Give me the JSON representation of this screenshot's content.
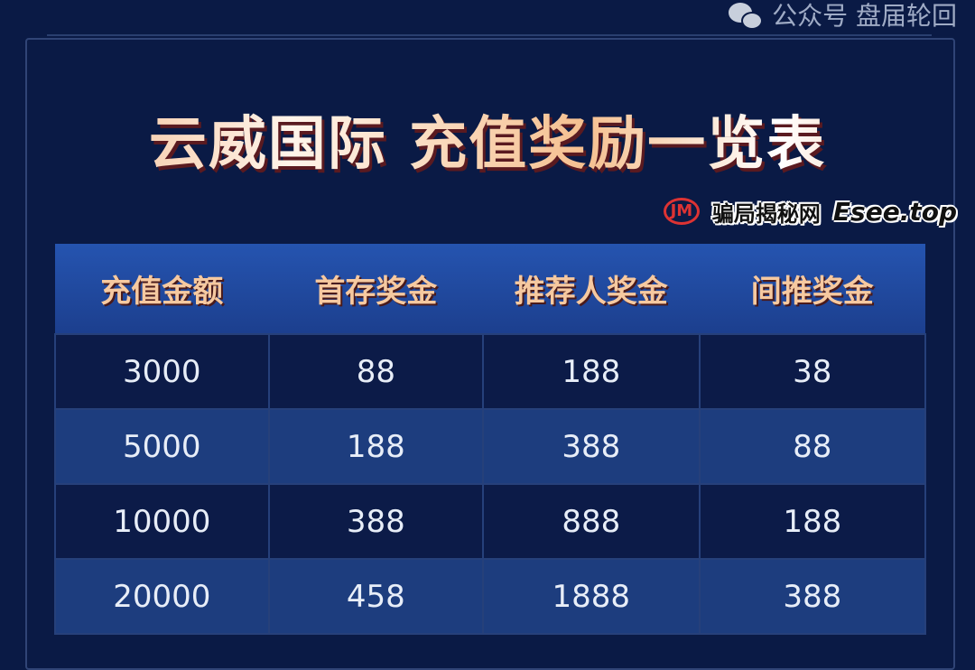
{
  "title": "云威国际 充值奖励一览表",
  "table": {
    "headers": [
      "充值金额",
      "首存奖金",
      "推荐人奖金",
      "间推奖金"
    ],
    "rows": [
      [
        "3000",
        "88",
        "188",
        "38"
      ],
      [
        "5000",
        "188",
        "388",
        "88"
      ],
      [
        "10000",
        "388",
        "888",
        "188"
      ],
      [
        "20000",
        "458",
        "1888",
        "388"
      ]
    ]
  },
  "watermark": {
    "account": "公众号 盘届轮回",
    "logo": "JM",
    "brand": "骗局揭秘网",
    "site": "Esee.top",
    "icon": "wechat-icon"
  },
  "colors": {
    "background": "#0a1a45",
    "header": "#2554b0",
    "row_dark": "#0c1b48",
    "row_light": "#1d3d7e",
    "title_accent": "#f0b080"
  }
}
